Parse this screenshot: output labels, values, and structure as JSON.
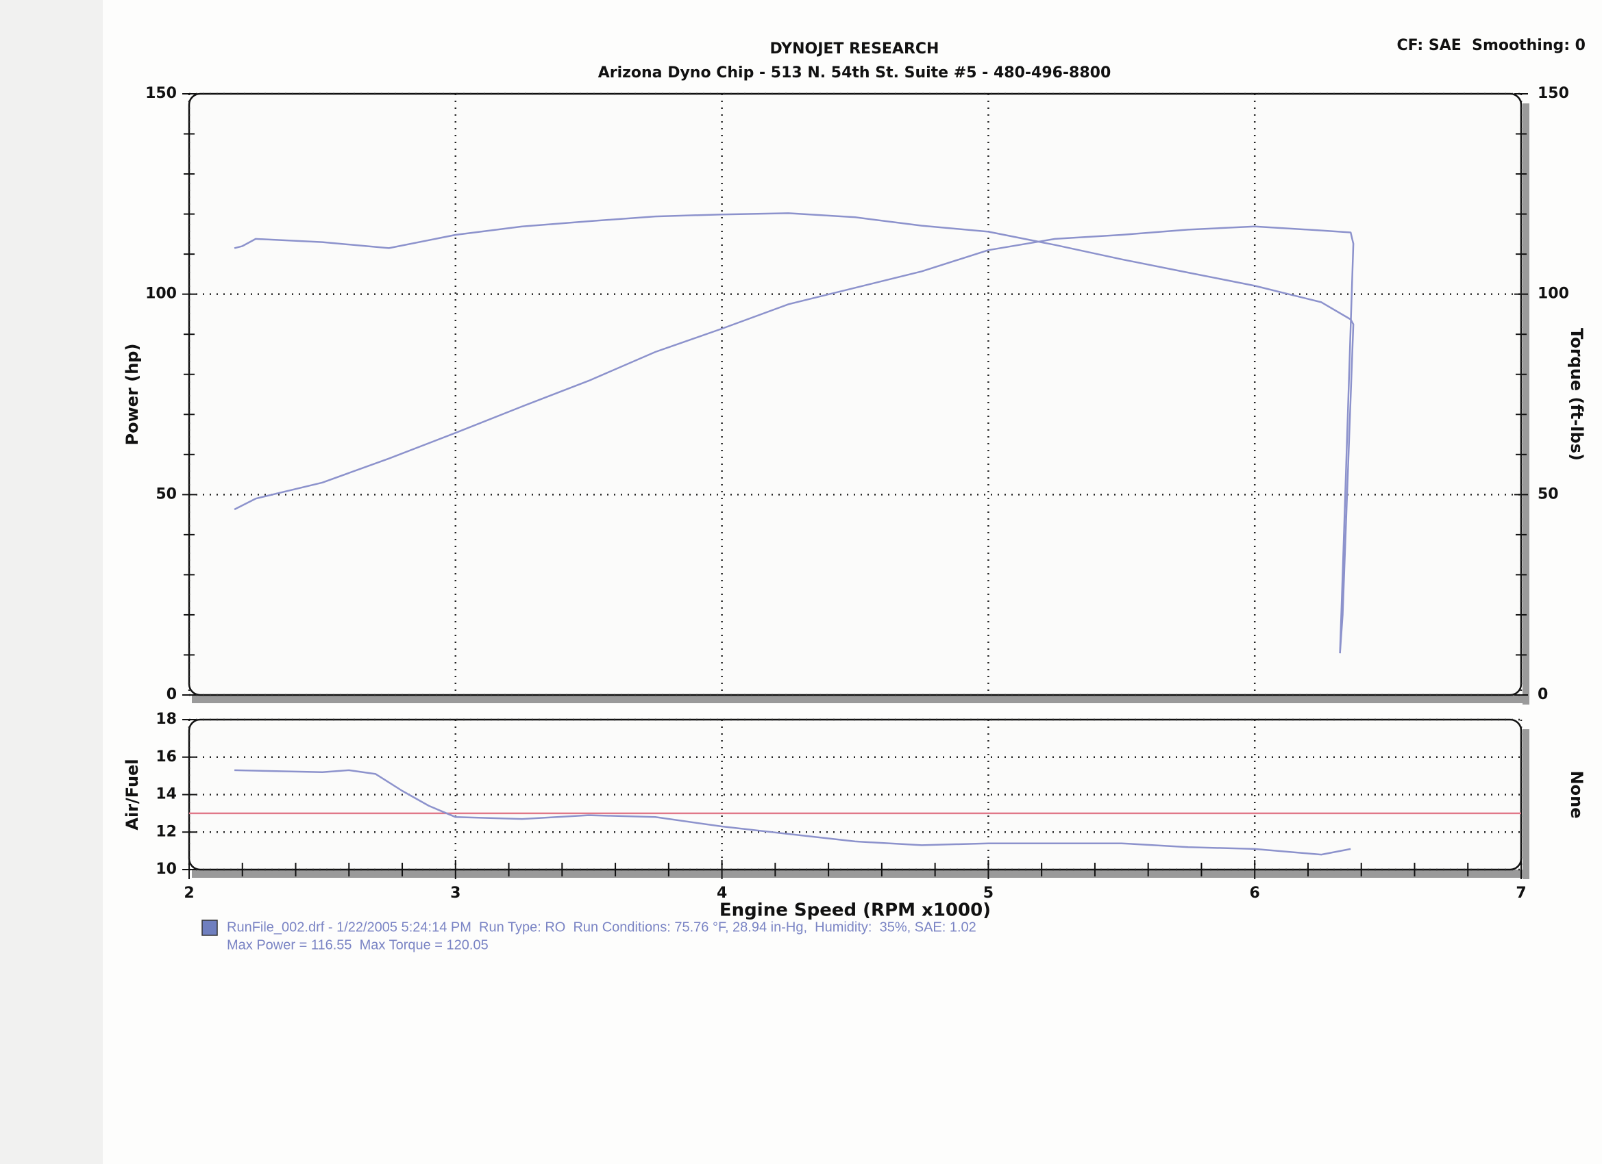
{
  "header": {
    "title": "DYNOJET RESEARCH",
    "subtitle": "Arizona Dyno Chip - 513 N. 54th St. Suite #5 - 480-496-8800",
    "corner": "CF: SAE  Smoothing: 0"
  },
  "legend": {
    "color": "#6f7fbf",
    "lines": [
      "RunFile_002.drf - 1/22/2005 5:24:14 PM  Run Type: RO  Run Conditions: 75.76 °F, 28.94 in-Hg,  Humidity:  35%, SAE: 1.02",
      "Max Power = 116.55  Max Torque = 120.05"
    ]
  },
  "chart_data": [
    {
      "type": "line",
      "ylabel": "Power (hp)",
      "y2label": "Torque (ft-lbs)",
      "xlim": [
        2,
        7
      ],
      "xticks": [
        2,
        3,
        4,
        5,
        6,
        7
      ],
      "ylim": [
        0,
        150
      ],
      "yticks": [
        0,
        50,
        100,
        150
      ],
      "y2lim": [
        0,
        150
      ],
      "y2ticks": [
        0,
        50,
        100,
        150
      ],
      "yminor": [
        10,
        20,
        30,
        40,
        60,
        70,
        80,
        90,
        110,
        120,
        130,
        140
      ],
      "grid": true,
      "series": [
        {
          "color": "#8c92cc",
          "x": [
            2.17,
            2.25,
            2.5,
            2.75,
            3,
            3.25,
            3.5,
            3.75,
            4,
            4.25,
            4.5,
            4.75,
            5,
            5.25,
            5.5,
            5.75,
            6,
            6.25,
            6.36,
            6.37,
            6.33,
            6.32
          ],
          "values": [
            46.3,
            49,
            53,
            59,
            65.4,
            72,
            78.4,
            85.6,
            91.4,
            97.5,
            101.6,
            105.7,
            111,
            113.8,
            114.8,
            116.1,
            116.9,
            115.9,
            115.4,
            112.6,
            30,
            10.4
          ]
        },
        {
          "color": "#8c92cc",
          "axis": "y2",
          "x": [
            2.17,
            2.2,
            2.25,
            2.5,
            2.75,
            3,
            3.25,
            3.5,
            3.75,
            4,
            4.25,
            4.5,
            4.75,
            5,
            5.25,
            5.5,
            5.75,
            6,
            6.25,
            6.36,
            6.37,
            6.33,
            6.32
          ],
          "values": [
            111.5,
            112,
            113.8,
            113,
            111.5,
            114.8,
            116.9,
            118.2,
            119.4,
            119.9,
            120.2,
            119.2,
            117.1,
            115.6,
            112.3,
            108.7,
            105.4,
            102.1,
            98,
            93.7,
            92.5,
            20,
            10.4
          ]
        }
      ]
    },
    {
      "type": "line",
      "ylabel": "Air/Fuel",
      "y2label": "None",
      "xlabel": "Engine Speed (RPM x1000)",
      "xlim": [
        2,
        7
      ],
      "xticks": [
        2,
        3,
        4,
        5,
        6,
        7
      ],
      "xminor": [
        2.2,
        2.4,
        2.6,
        2.8,
        3.2,
        3.4,
        3.6,
        3.8,
        4.2,
        4.4,
        4.6,
        4.8,
        5.2,
        5.4,
        5.6,
        5.8,
        6.2,
        6.4,
        6.6,
        6.8
      ],
      "ylim": [
        10,
        18
      ],
      "yticks": [
        10,
        12,
        14,
        16,
        18
      ],
      "grid": true,
      "reference": {
        "value": 13,
        "color": "#e07888"
      },
      "series": [
        {
          "color": "#8c92cc",
          "x": [
            2.17,
            2.5,
            2.6,
            2.7,
            2.8,
            2.9,
            3,
            3.25,
            3.5,
            3.75,
            4,
            4.25,
            4.5,
            4.75,
            5,
            5.25,
            5.5,
            5.75,
            6,
            6.25,
            6.36
          ],
          "values": [
            15.3,
            15.2,
            15.3,
            15.1,
            14.2,
            13.4,
            12.8,
            12.7,
            12.9,
            12.8,
            12.3,
            11.9,
            11.5,
            11.3,
            11.4,
            11.4,
            11.4,
            11.2,
            11.1,
            10.8,
            11.1
          ]
        }
      ]
    }
  ]
}
